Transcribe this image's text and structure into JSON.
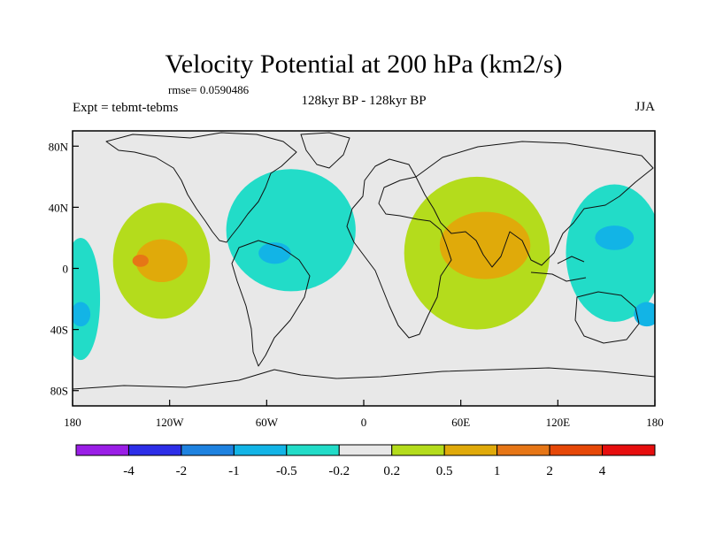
{
  "chart_data": {
    "type": "heatmap",
    "title": "Velocity Potential at 200 hPa (km2/s)",
    "rmse_text": "rmse= 0.0590486",
    "left_label": "Expt = tebmt-tebms",
    "center_label": "128kyr BP - 128kyr BP",
    "right_label": "JJA",
    "x_ticks": [
      "180",
      "120W",
      "60W",
      "0",
      "60E",
      "120E",
      "180"
    ],
    "x_tick_values": [
      -180,
      -120,
      -60,
      0,
      60,
      120,
      180
    ],
    "y_ticks": [
      "80N",
      "40N",
      "0",
      "40S",
      "80S"
    ],
    "y_tick_values": [
      80,
      40,
      0,
      -40,
      -80
    ],
    "xlim": [
      -180,
      180
    ],
    "ylim": [
      -90,
      90
    ],
    "colorbar": {
      "labels": [
        "-4",
        "-2",
        "-1",
        "-0.5",
        "-0.2",
        "0.2",
        "0.5",
        "1",
        "2",
        "4"
      ],
      "colors": [
        "#9a1ee6",
        "#2d2ee8",
        "#1e82e0",
        "#12b4e6",
        "#22dcc8",
        "#e8e8e8",
        "#b4dc1c",
        "#e0aa0a",
        "#e67616",
        "#e64808",
        "#e60e0e"
      ]
    },
    "background_color": "#e8e8e8",
    "regions": [
      {
        "name": "east-pacific-positive",
        "level": "0.2 to 0.5",
        "color": "#b4dc1c",
        "lon": -125,
        "lat": 5,
        "rx": 30,
        "ry": 38
      },
      {
        "name": "east-pacific-core",
        "level": "0.5 to 1",
        "color": "#e0aa0a",
        "lon": -125,
        "lat": 5,
        "rx": 16,
        "ry": 14
      },
      {
        "name": "east-pacific-peak",
        "level": "1 to 2",
        "color": "#e67616",
        "lon": -138,
        "lat": 5,
        "rx": 5,
        "ry": 4
      },
      {
        "name": "atlantic-negative",
        "level": "-0.5 to -0.2",
        "color": "#22dcc8",
        "lon": -45,
        "lat": 25,
        "rx": 40,
        "ry": 40
      },
      {
        "name": "caribbean-negative",
        "level": "-1 to -0.5",
        "color": "#12b4e6",
        "lon": -55,
        "lat": 10,
        "rx": 10,
        "ry": 7
      },
      {
        "name": "asia-positive",
        "level": "0.2 to 0.5",
        "color": "#b4dc1c",
        "lon": 70,
        "lat": 10,
        "rx": 45,
        "ry": 50
      },
      {
        "name": "asia-core",
        "level": "0.5 to 1",
        "color": "#e0aa0a",
        "lon": 75,
        "lat": 15,
        "rx": 28,
        "ry": 22
      },
      {
        "name": "west-pacific-negative",
        "level": "-0.5 to -0.2",
        "color": "#22dcc8",
        "lon": 155,
        "lat": 10,
        "rx": 30,
        "ry": 45
      },
      {
        "name": "west-pacific-core",
        "level": "-1 to -0.5",
        "color": "#12b4e6",
        "lon": 155,
        "lat": 20,
        "rx": 12,
        "ry": 8
      },
      {
        "name": "south-pacific-core",
        "level": "-1 to -0.5",
        "color": "#12b4e6",
        "lon": 175,
        "lat": -30,
        "rx": 8,
        "ry": 8
      },
      {
        "name": "dateline-west-negative",
        "level": "-0.5 to -0.2",
        "color": "#22dcc8",
        "lon": -175,
        "lat": -20,
        "rx": 12,
        "ry": 40
      },
      {
        "name": "dateline-west-core",
        "level": "-1 to -0.5",
        "color": "#12b4e6",
        "lon": -175,
        "lat": -30,
        "rx": 6,
        "ry": 8
      }
    ]
  }
}
